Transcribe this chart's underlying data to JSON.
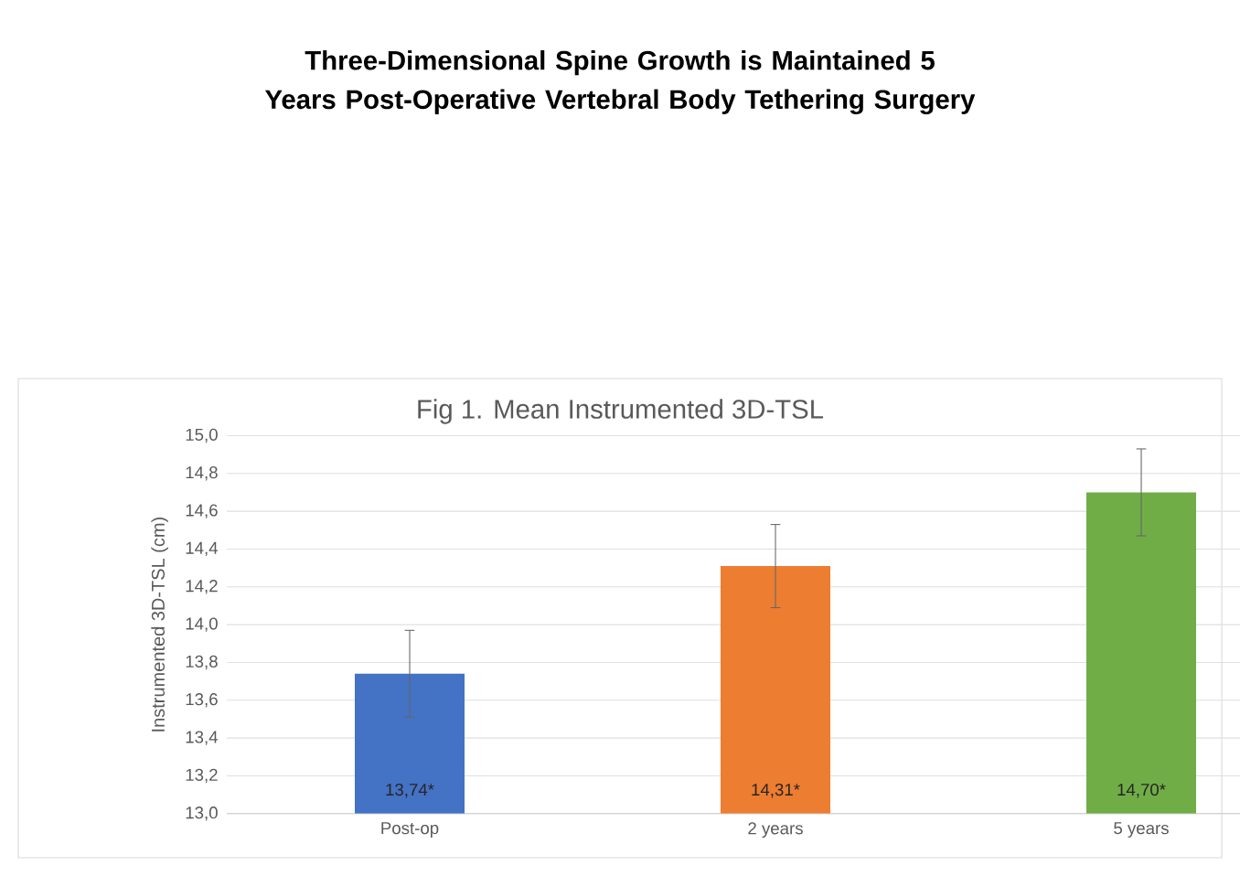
{
  "chart_data": {
    "type": "bar",
    "title": "Three-Dimensional Spine Growth is Maintained 5 Years Post-Operative Vertebral Body Tethering Surgery",
    "subtitle": "Fig 1. Mean Instrumented 3D-TSL",
    "ylabel": "Instrumented 3D-TSL (cm)",
    "categories": [
      "Post-op",
      "2 years",
      "5 years"
    ],
    "values": [
      13.74,
      14.31,
      14.7
    ],
    "colors": [
      "#4472c4",
      "#ed7d31",
      "#70ad47"
    ],
    "errors": [
      0.23,
      0.22,
      0.23
    ],
    "value_labels": [
      "13,74*",
      "14,31*",
      "14,70*"
    ],
    "ylim": [
      13.0,
      15.0
    ],
    "yticks": [
      {
        "value": 13.0,
        "label": "13,0"
      },
      {
        "value": 13.2,
        "label": "13,2"
      },
      {
        "value": 13.4,
        "label": "13,4"
      },
      {
        "value": 13.6,
        "label": "13,6"
      },
      {
        "value": 13.8,
        "label": "13,8"
      },
      {
        "value": 14.0,
        "label": "14,0"
      },
      {
        "value": 14.2,
        "label": "14,2"
      },
      {
        "value": 14.4,
        "label": "14,4"
      },
      {
        "value": 14.6,
        "label": "14,6"
      },
      {
        "value": 14.8,
        "label": "14,8"
      },
      {
        "value": 15.0,
        "label": "15,0"
      }
    ],
    "grid": "y"
  }
}
